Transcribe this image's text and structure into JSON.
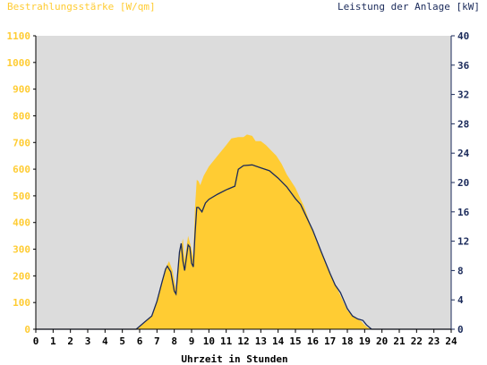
{
  "colors": {
    "irradiance": "#ffcc33",
    "power": "#1a2a5a",
    "plot_background": "#dcdcdc",
    "left_axis_text": "#ffcc33",
    "right_axis_text": "#1a2a5a"
  },
  "chart_data": {
    "type": "area",
    "ylabel_left": "Bestrahlungsstärke [W/qm]",
    "ylabel_right": "Leistung der Anlage [kW]",
    "xlabel": "Uhrzeit in Stunden",
    "xlim": [
      0,
      24
    ],
    "ylim_left": [
      0,
      1100
    ],
    "ylim_right": [
      0,
      40
    ],
    "x_ticks": [
      "0",
      "1",
      "2",
      "3",
      "4",
      "5",
      "6",
      "7",
      "8",
      "9",
      "10",
      "11",
      "12",
      "13",
      "14",
      "15",
      "16",
      "17",
      "18",
      "19",
      "20",
      "21",
      "22",
      "23",
      "24"
    ],
    "y_left_ticks": [
      "0",
      "100",
      "200",
      "300",
      "400",
      "500",
      "600",
      "700",
      "800",
      "900",
      "1000",
      "1100"
    ],
    "y_right_ticks": [
      "0",
      "4",
      "8",
      "12",
      "16",
      "20",
      "24",
      "28",
      "32",
      "36",
      "40"
    ],
    "grid": false,
    "series": [
      {
        "name": "Bestrahlungsstärke [W/qm]",
        "axis": "left",
        "type": "area",
        "points": [
          [
            0,
            0
          ],
          [
            5.7,
            0
          ],
          [
            6.0,
            8
          ],
          [
            6.3,
            25
          ],
          [
            6.7,
            50
          ],
          [
            7.0,
            110
          ],
          [
            7.3,
            180
          ],
          [
            7.5,
            230
          ],
          [
            7.7,
            255
          ],
          [
            7.9,
            220
          ],
          [
            8.1,
            150
          ],
          [
            8.3,
            280
          ],
          [
            8.5,
            340
          ],
          [
            8.6,
            260
          ],
          [
            8.8,
            350
          ],
          [
            9.0,
            300
          ],
          [
            9.1,
            270
          ],
          [
            9.2,
            460
          ],
          [
            9.3,
            560
          ],
          [
            9.4,
            555
          ],
          [
            9.5,
            540
          ],
          [
            9.7,
            575
          ],
          [
            10.0,
            610
          ],
          [
            10.5,
            650
          ],
          [
            11.0,
            690
          ],
          [
            11.3,
            715
          ],
          [
            11.7,
            720
          ],
          [
            12.0,
            720
          ],
          [
            12.2,
            730
          ],
          [
            12.5,
            725
          ],
          [
            12.7,
            705
          ],
          [
            13.0,
            705
          ],
          [
            13.3,
            690
          ],
          [
            13.6,
            670
          ],
          [
            13.9,
            650
          ],
          [
            14.2,
            620
          ],
          [
            14.5,
            580
          ],
          [
            15.0,
            530
          ],
          [
            15.5,
            460
          ],
          [
            16.0,
            370
          ],
          [
            16.5,
            290
          ],
          [
            17.0,
            210
          ],
          [
            17.5,
            140
          ],
          [
            18.0,
            70
          ],
          [
            18.5,
            40
          ],
          [
            18.8,
            30
          ],
          [
            19.0,
            15
          ],
          [
            19.2,
            5
          ],
          [
            19.4,
            0
          ],
          [
            24,
            0
          ]
        ]
      },
      {
        "name": "Leistung der Anlage [kW]",
        "axis": "right",
        "type": "line",
        "points": [
          [
            0,
            0
          ],
          [
            5.8,
            0
          ],
          [
            6.0,
            0.4
          ],
          [
            6.3,
            1.0
          ],
          [
            6.7,
            1.8
          ],
          [
            7.0,
            3.8
          ],
          [
            7.3,
            6.5
          ],
          [
            7.5,
            8.2
          ],
          [
            7.6,
            8.6
          ],
          [
            7.8,
            7.8
          ],
          [
            8.0,
            5.2
          ],
          [
            8.1,
            4.8
          ],
          [
            8.3,
            10.5
          ],
          [
            8.4,
            11.7
          ],
          [
            8.5,
            9.3
          ],
          [
            8.6,
            8.0
          ],
          [
            8.8,
            11.5
          ],
          [
            8.9,
            11.2
          ],
          [
            9.0,
            9.0
          ],
          [
            9.1,
            8.5
          ],
          [
            9.2,
            13.0
          ],
          [
            9.3,
            16.6
          ],
          [
            9.4,
            16.6
          ],
          [
            9.6,
            16.0
          ],
          [
            9.8,
            17.2
          ],
          [
            10.0,
            17.7
          ],
          [
            10.5,
            18.4
          ],
          [
            11.0,
            19.0
          ],
          [
            11.5,
            19.5
          ],
          [
            11.7,
            21.8
          ],
          [
            12.0,
            22.3
          ],
          [
            12.5,
            22.4
          ],
          [
            13.0,
            22.0
          ],
          [
            13.5,
            21.6
          ],
          [
            14.0,
            20.6
          ],
          [
            14.5,
            19.4
          ],
          [
            15.0,
            17.8
          ],
          [
            15.3,
            17.0
          ],
          [
            15.5,
            16.0
          ],
          [
            16.0,
            13.5
          ],
          [
            16.5,
            10.5
          ],
          [
            17.0,
            7.6
          ],
          [
            17.3,
            6.0
          ],
          [
            17.6,
            5.0
          ],
          [
            18.0,
            2.8
          ],
          [
            18.3,
            1.8
          ],
          [
            18.6,
            1.4
          ],
          [
            18.9,
            1.2
          ],
          [
            19.1,
            0.6
          ],
          [
            19.4,
            0
          ],
          [
            24,
            0
          ]
        ]
      }
    ]
  }
}
